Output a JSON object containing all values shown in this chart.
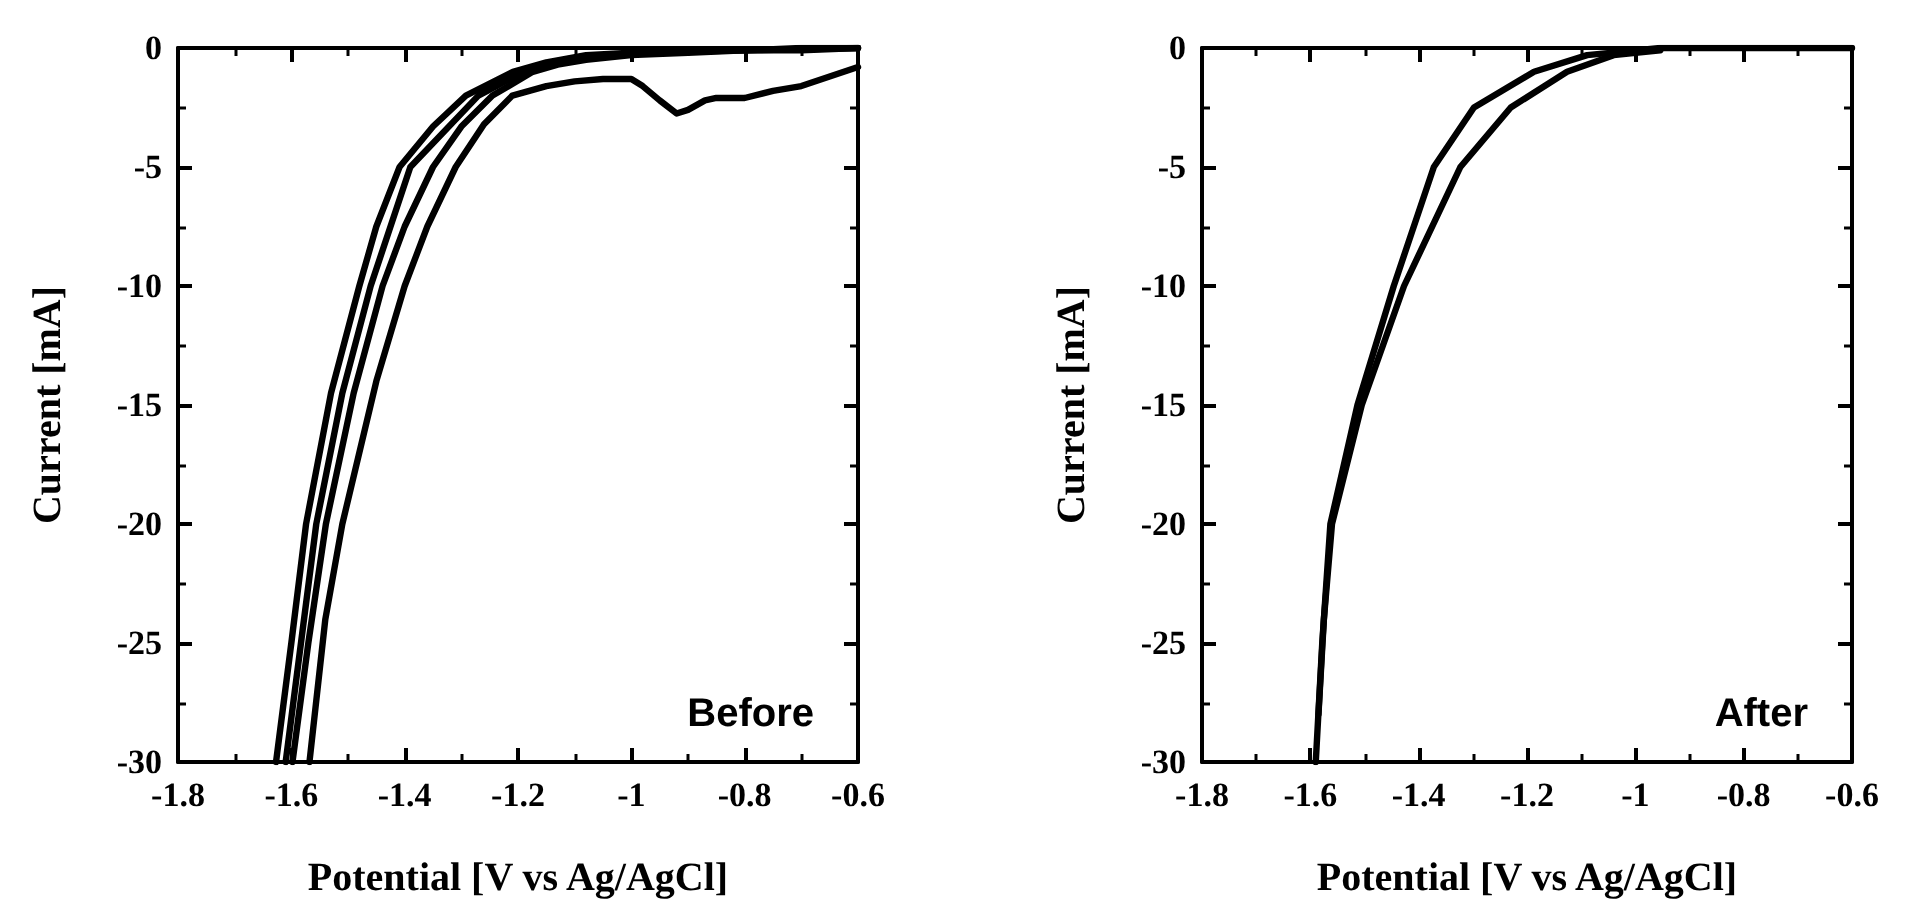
{
  "chart_data": [
    {
      "type": "line",
      "xlabel": "Potential [V vs Ag/AgCl]",
      "ylabel": "Current [mA]",
      "annotations": [
        "Before"
      ],
      "marker": "none",
      "line_style": "solid",
      "xlim": [
        -1.8,
        -0.6
      ],
      "ylim": [
        -30,
        0
      ],
      "xticks": [
        -1.8,
        -1.6,
        -1.4,
        -1.2,
        -1.0,
        -0.8,
        -0.6
      ],
      "yticks": [
        -30,
        -25,
        -20,
        -15,
        -10,
        -5,
        0
      ],
      "series": [
        {
          "color": "#000000",
          "x": [
            -0.6,
            -0.65,
            -0.7,
            -0.75,
            -0.8,
            -0.85,
            -0.87,
            -0.9,
            -0.92,
            -0.95,
            -0.98,
            -1.0,
            -1.05,
            -1.1,
            -1.15,
            -1.21,
            -1.26,
            -1.31,
            -1.36,
            -1.4,
            -1.45,
            -1.51,
            -1.54,
            -1.568
          ],
          "values": [
            -0.8,
            -1.2,
            -1.6,
            -1.8,
            -2.1,
            -2.1,
            -2.2,
            -2.6,
            -2.75,
            -2.2,
            -1.6,
            -1.3,
            -1.3,
            -1.4,
            -1.6,
            -2,
            -3.2,
            -5,
            -7.5,
            -10,
            -14,
            -20,
            -24,
            -30
          ]
        },
        {
          "color": "#000000",
          "x": [
            -0.6,
            -0.7,
            -0.8,
            -0.9,
            -1.0,
            -1.08,
            -1.13,
            -1.174,
            -1.245,
            -1.3,
            -1.35,
            -1.4,
            -1.439,
            -1.49,
            -1.539,
            -1.57,
            -1.598
          ],
          "values": [
            0,
            -0.1,
            -0.1,
            -0.2,
            -0.3,
            -0.5,
            -0.7,
            -1,
            -2,
            -3.3,
            -5,
            -7.5,
            -10,
            -14.5,
            -20,
            -25,
            -30
          ]
        },
        {
          "color": "#000000",
          "x": [
            -0.6,
            -0.7,
            -0.8,
            -0.9,
            -1.0,
            -1.08,
            -1.15,
            -1.209,
            -1.292,
            -1.35,
            -1.409,
            -1.45,
            -1.48,
            -1.53,
            -1.574,
            -1.6,
            -1.627
          ],
          "values": [
            0,
            0,
            -0.1,
            -0.1,
            -0.2,
            -0.3,
            -0.6,
            -1,
            -2,
            -3.3,
            -5,
            -7.5,
            -10,
            -14.5,
            -20,
            -25,
            -30
          ]
        },
        {
          "color": "#000000",
          "x": [
            -0.6,
            -0.8,
            -1.0,
            -1.1,
            -1.19,
            -1.27,
            -1.39,
            -1.46,
            -1.51,
            -1.556,
            -1.61
          ],
          "values": [
            0,
            -0.1,
            -0.2,
            -0.5,
            -1,
            -2,
            -5,
            -10,
            -14.5,
            -20,
            -30
          ]
        }
      ]
    },
    {
      "type": "line",
      "xlabel": "Potential [V vs Ag/AgCl]",
      "ylabel": "Current [mA]",
      "annotations": [
        "After"
      ],
      "marker": "none",
      "line_style": "solid",
      "xlim": [
        -1.8,
        -0.6
      ],
      "ylim": [
        -30,
        0
      ],
      "xticks": [
        -1.8,
        -1.6,
        -1.4,
        -1.2,
        -1.0,
        -0.8,
        -0.6
      ],
      "yticks": [
        -30,
        -25,
        -20,
        -15,
        -10,
        -5,
        0
      ],
      "series": [
        {
          "color": "#000000",
          "x": [
            -0.6,
            -0.7,
            -0.8,
            -0.9,
            -0.954,
            -1.0,
            -1.089,
            -1.187,
            -1.298,
            -1.372,
            -1.446,
            -1.513,
            -1.563,
            -1.578,
            -1.59
          ],
          "values": [
            0,
            0,
            0,
            0,
            0,
            -0.1,
            -0.3,
            -1,
            -2.5,
            -5,
            -10,
            -15,
            -20,
            -25,
            -30
          ]
        },
        {
          "color": "#000000",
          "x": [
            -0.954,
            -1.04,
            -1.126,
            -1.23,
            -1.323,
            -1.427,
            -1.505,
            -1.56,
            -1.575,
            -1.585
          ],
          "values": [
            -0.1,
            -0.3,
            -1,
            -2.5,
            -5,
            -10,
            -15,
            -20,
            -24,
            -28
          ]
        }
      ]
    }
  ]
}
